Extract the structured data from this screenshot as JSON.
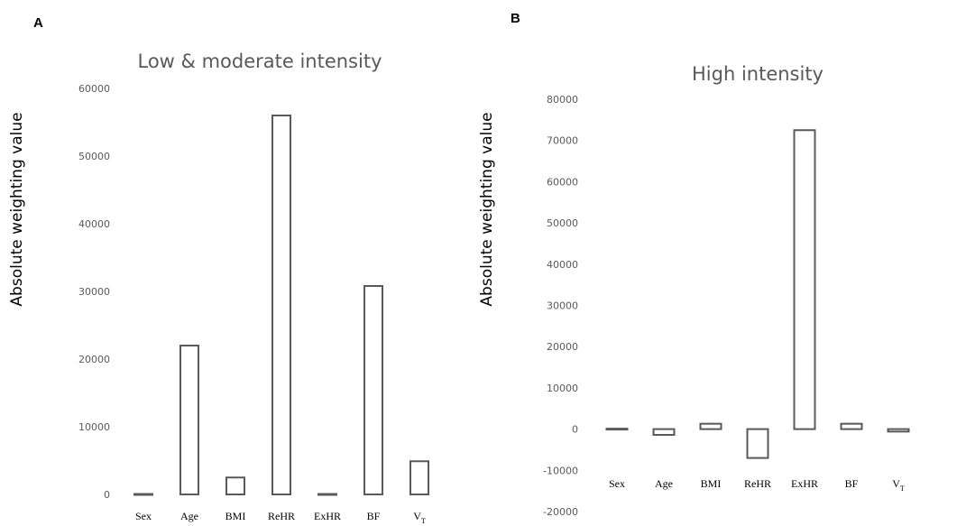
{
  "panels": [
    {
      "letter": "A"
    },
    {
      "letter": "B"
    }
  ],
  "chart_data": [
    {
      "type": "bar",
      "title": "Low & moderate intensity",
      "ylabel": "Absolute weighting value",
      "xlabel": "",
      "categories": [
        "Sex",
        "Age",
        "BMI",
        "ReHR",
        "ExHR",
        "BF",
        "VT"
      ],
      "values": [
        100,
        22000,
        2500,
        56000,
        100,
        30800,
        4900
      ],
      "ylim": [
        0,
        60000
      ],
      "yticks": [
        0,
        10000,
        20000,
        30000,
        40000,
        50000,
        60000
      ],
      "grid": false,
      "colors": {
        "outline": "#595959",
        "fill": "#ffffff"
      }
    },
    {
      "type": "bar",
      "title": "High intensity",
      "ylabel": "Absolute weighting value",
      "xlabel": "",
      "categories": [
        "Sex",
        "Age",
        "BMI",
        "ReHR",
        "ExHR",
        "BF",
        "VT"
      ],
      "values": [
        100,
        -1400,
        1300,
        -7000,
        72500,
        1300,
        -600
      ],
      "ylim": [
        -20000,
        80000
      ],
      "yticks": [
        -20000,
        -10000,
        0,
        10000,
        20000,
        30000,
        40000,
        50000,
        60000,
        70000,
        80000
      ],
      "grid": false,
      "colors": {
        "outline": "#595959",
        "fill": "#ffffff"
      }
    }
  ]
}
